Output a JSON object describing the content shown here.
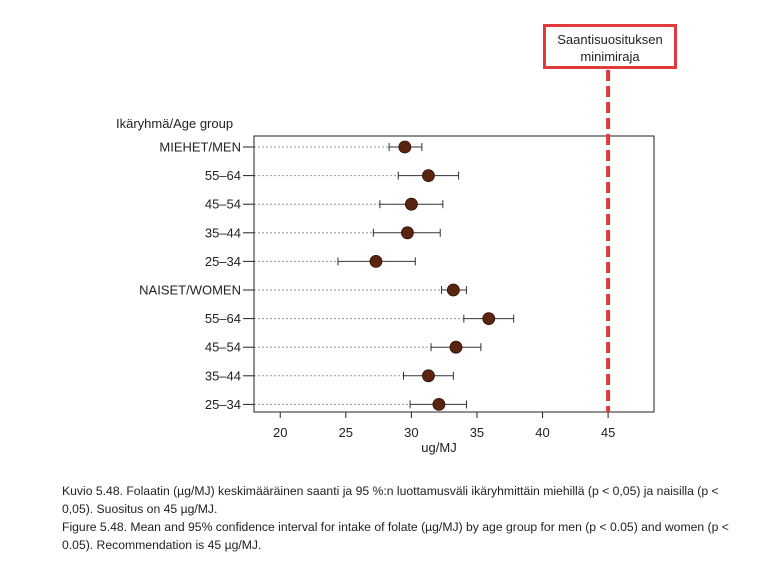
{
  "chart_data": {
    "type": "scatter",
    "subtype": "dot-plot-with-confidence-intervals",
    "group_header": "Ikäryhmä/Age group",
    "xlabel": "ug/MJ",
    "xlim": [
      18,
      48.5
    ],
    "xticks": [
      20,
      25,
      30,
      35,
      40,
      45
    ],
    "grid": false,
    "rows": [
      {
        "label": "MIEHET/MEN",
        "mean": 29.5,
        "ci_low": 28.3,
        "ci_high": 30.8
      },
      {
        "label": "55–64",
        "mean": 31.3,
        "ci_low": 29.0,
        "ci_high": 33.6
      },
      {
        "label": "45–54",
        "mean": 30.0,
        "ci_low": 27.6,
        "ci_high": 32.4
      },
      {
        "label": "35–44",
        "mean": 29.7,
        "ci_low": 27.1,
        "ci_high": 32.2
      },
      {
        "label": "25–34",
        "mean": 27.3,
        "ci_low": 24.4,
        "ci_high": 30.3
      },
      {
        "label": "NAISET/WOMEN",
        "mean": 33.2,
        "ci_low": 32.3,
        "ci_high": 34.2
      },
      {
        "label": "55–64",
        "mean": 35.9,
        "ci_low": 34.0,
        "ci_high": 37.8
      },
      {
        "label": "45–54",
        "mean": 33.4,
        "ci_low": 31.5,
        "ci_high": 35.3
      },
      {
        "label": "35–44",
        "mean": 31.3,
        "ci_low": 29.4,
        "ci_high": 33.2
      },
      {
        "label": "25–34",
        "mean": 32.1,
        "ci_low": 29.9,
        "ci_high": 34.2
      }
    ],
    "reference_line": {
      "value": 45,
      "label_line1": "Saantisuosituksen",
      "label_line2": "minimiraja",
      "color": "#e03a3a"
    },
    "marker_color": "#5a2410"
  },
  "caption": {
    "fi": "Kuvio 5.48. Folaatin (µg/MJ) keskimääräinen saanti ja 95 %:n luottamusväli ikäryhmittäin miehillä (p < 0,05) ja naisilla (p < 0,05). Suositus on 45 µg/MJ.",
    "en": "Figure 5.48. Mean and 95% confidence interval for intake of folate (µg/MJ) by age group for men (p < 0.05) and women (p < 0.05). Recommendation is 45 µg/MJ."
  }
}
